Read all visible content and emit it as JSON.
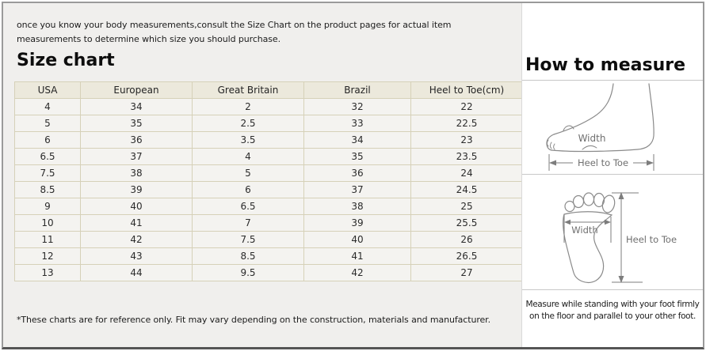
{
  "frame": {
    "intro": "once you know your body measurements,consult the Size Chart on the product pages for actual item measurements to determine which size you should purchase.",
    "size_chart_title": "Size chart",
    "footnote": "*These charts are for reference only. Fit may vary depending on the construction, materials and manufacturer."
  },
  "size_table": {
    "columns": [
      "USA",
      "European",
      "Great Britain",
      "Brazil",
      "Heel to Toe(cm)"
    ],
    "rows": [
      [
        "4",
        "34",
        "2",
        "32",
        "22"
      ],
      [
        "5",
        "35",
        "2.5",
        "33",
        "22.5"
      ],
      [
        "6",
        "36",
        "3.5",
        "34",
        "23"
      ],
      [
        "6.5",
        "37",
        "4",
        "35",
        "23.5"
      ],
      [
        "7.5",
        "38",
        "5",
        "36",
        "24"
      ],
      [
        "8.5",
        "39",
        "6",
        "37",
        "24.5"
      ],
      [
        "9",
        "40",
        "6.5",
        "38",
        "25"
      ],
      [
        "10",
        "41",
        "7",
        "39",
        "25.5"
      ],
      [
        "11",
        "42",
        "7.5",
        "40",
        "26"
      ],
      [
        "12",
        "43",
        "8.5",
        "41",
        "26.5"
      ],
      [
        "13",
        "44",
        "9.5",
        "42",
        "27"
      ]
    ]
  },
  "measure": {
    "title": "How to measure",
    "side_view": {
      "width_label": "Width",
      "heel_to_toe_label": "Heel to Toe"
    },
    "top_view": {
      "width_label": "Width",
      "heel_to_toe_label": "Heel to Toe"
    },
    "instruction": "Measure while standing with your foot firmly on the floor and parallel to your other foot."
  },
  "colors": {
    "panel_bg": "#f0efed",
    "measure_panel_bg": "#ffffff",
    "table_border": "#d6d1b8",
    "table_header_bg": "#ece9dc",
    "table_row_bg": "#f4f3f0",
    "diagram_line": "#8a8a8a",
    "label_text": "#6f6f6f"
  }
}
